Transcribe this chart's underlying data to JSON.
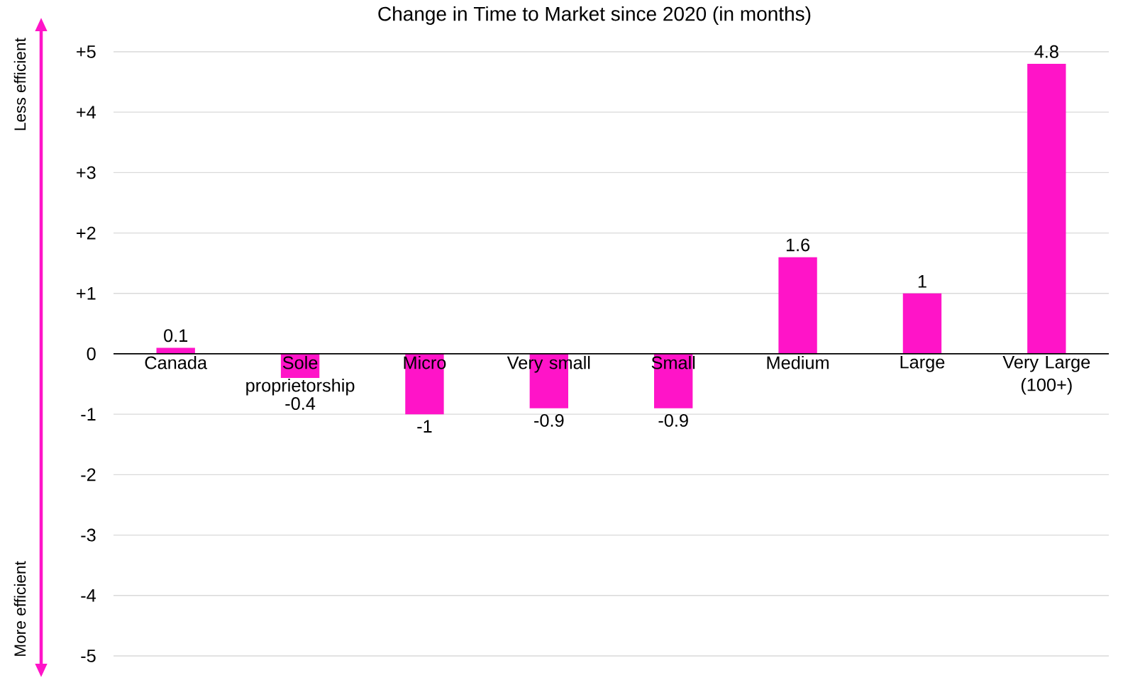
{
  "chart_data": {
    "type": "bar",
    "title": "Change in Time to Market since 2020 (in months)",
    "categories": [
      "Canada",
      "Sole proprietorship",
      "Micro",
      "Very small",
      "Small",
      "Medium",
      "Large",
      "Very Large (100+)"
    ],
    "values": [
      0.1,
      -0.4,
      -1,
      -0.9,
      -0.9,
      1.6,
      1,
      4.8
    ],
    "color": "#ff14c8",
    "ylim": [
      -5,
      5
    ],
    "yticks": [
      {
        "value": -5,
        "label": "-5"
      },
      {
        "value": -4,
        "label": "-4"
      },
      {
        "value": -3,
        "label": "-3"
      },
      {
        "value": -2,
        "label": "-2"
      },
      {
        "value": -1,
        "label": "-1"
      },
      0,
      {
        "value": 1,
        "label": "+1"
      },
      {
        "value": 2,
        "label": "+2"
      },
      {
        "value": 3,
        "label": "+3"
      },
      {
        "value": 4,
        "label": "+4"
      },
      {
        "value": 5,
        "label": "+5"
      }
    ],
    "grid": "y",
    "data_labels": true,
    "annotations": [
      "Less efficient",
      "More efficient"
    ]
  }
}
